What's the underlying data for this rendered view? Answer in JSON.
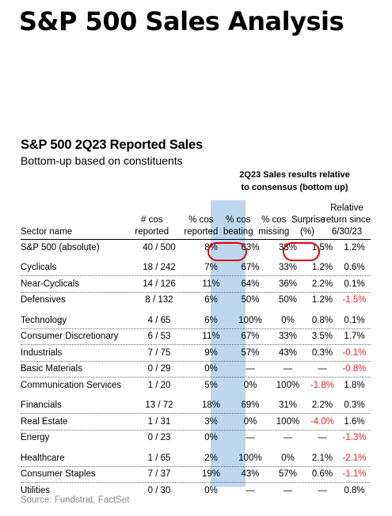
{
  "title": "S&P 500 Sales Analysis",
  "table_title": "S&P 500 2Q23 Reported Sales",
  "table_subtitle": "Bottom-up based on constituents",
  "group_header": [
    "2Q23 Sales results relative",
    "to consensus (bottom up)"
  ],
  "columns": [
    {
      "lines": [
        "",
        "",
        "Sector name"
      ]
    },
    {
      "lines": [
        "",
        "# cos",
        "reported"
      ]
    },
    {
      "lines": [
        "",
        "% cos",
        "reported"
      ]
    },
    {
      "lines": [
        "",
        "% cos",
        "beating"
      ]
    },
    {
      "lines": [
        "",
        "% cos",
        "missing"
      ]
    },
    {
      "lines": [
        "",
        "Surprise",
        "(%)"
      ]
    },
    {
      "lines": [
        "Relative",
        "return since",
        "6/30/23"
      ]
    }
  ],
  "groups": [
    [
      [
        "S&P 500 (absolute)",
        "40 / 500",
        "8%",
        "63%",
        "38%",
        "1.5%",
        "1.2%"
      ]
    ],
    [
      [
        "Cyclicals",
        "18 / 242",
        "7%",
        "67%",
        "33%",
        "1.2%",
        "0.6%"
      ],
      [
        "Near-Cyclicals",
        "14 / 126",
        "11%",
        "64%",
        "36%",
        "2.2%",
        "0.1%"
      ],
      [
        "Defensives",
        "8 / 132",
        "6%",
        "50%",
        "50%",
        "1.2%",
        "-1.5%"
      ]
    ],
    [
      [
        "Technology",
        "4 / 65",
        "6%",
        "100%",
        "0%",
        "0.8%",
        "0.1%"
      ],
      [
        "Consumer Discretionary",
        "6 / 53",
        "11%",
        "67%",
        "33%",
        "3.5%",
        "1.7%"
      ],
      [
        "Industrials",
        "7 / 75",
        "9%",
        "57%",
        "43%",
        "0.3%",
        "-0.1%"
      ],
      [
        "Basic Materials",
        "0 / 29",
        "0%",
        "—",
        "—",
        "—",
        "-0.8%"
      ],
      [
        "Communication Services",
        "1 / 20",
        "5%",
        "0%",
        "100%",
        "-1.8%",
        "1.8%"
      ]
    ],
    [
      [
        "Financials",
        "13 / 72",
        "18%",
        "69%",
        "31%",
        "2.2%",
        "0.3%"
      ],
      [
        "Real Estate",
        "1 / 31",
        "3%",
        "0%",
        "100%",
        "-4.0%",
        "1.6%"
      ],
      [
        "Energy",
        "0 / 23",
        "0%",
        "—",
        "—",
        "—",
        "-1.3%"
      ]
    ],
    [
      [
        "Healthcare",
        "1 / 65",
        "2%",
        "100%",
        "0%",
        "2.1%",
        "-2.1%"
      ],
      [
        "Consumer Staples",
        "7 / 37",
        "19%",
        "43%",
        "57%",
        "0.6%",
        "-1.1%"
      ],
      [
        "Utilities",
        "0 / 30",
        "0%",
        "—",
        "—",
        "—",
        "0.8%"
      ]
    ]
  ],
  "colors": {
    "highlight": "#bdd7ee",
    "negative": "#e8202a",
    "circle": "#e00000"
  },
  "source": "Source: Fundstrat, FactSet"
}
